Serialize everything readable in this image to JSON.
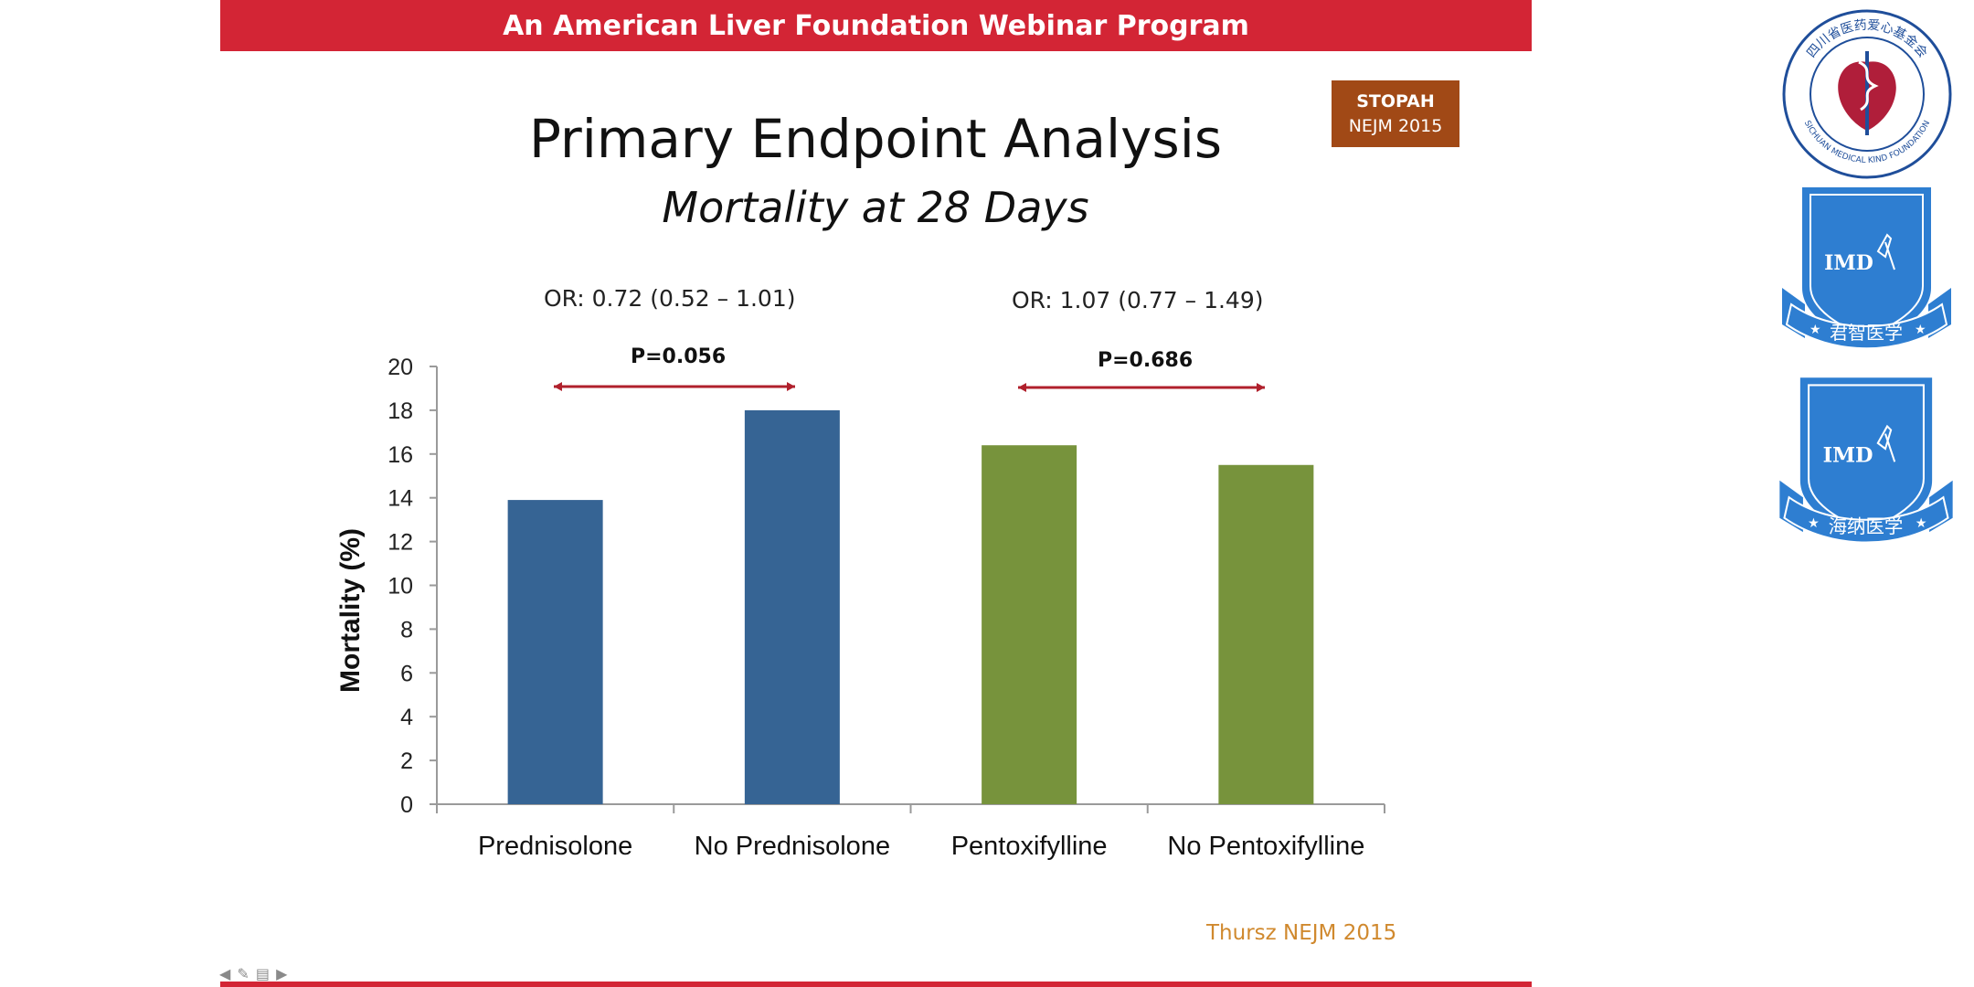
{
  "header": {
    "banner": "An American Liver Foundation Webinar Program"
  },
  "badge": {
    "line1": "STOPAH",
    "line2": "NEJM 2015"
  },
  "slide": {
    "title": "Primary Endpoint Analysis",
    "subtitle": "Mortality at 28 Days",
    "citation": "Thursz  NEJM 2015"
  },
  "comparisons": [
    {
      "or": "OR: 0.72 (0.52 – 1.01)",
      "p": "P=0.056"
    },
    {
      "or": "OR: 1.07 (0.77 – 1.49)",
      "p": "P=0.686"
    }
  ],
  "logos": [
    {
      "text": "四川省医药爱心基金会",
      "subtext": "SICHUAN MEDICAL KIND FOUNDATION"
    },
    {
      "text": "IMD",
      "subtext": "君智医学"
    },
    {
      "text": "IMD",
      "subtext": "海纳医学"
    }
  ],
  "colors": {
    "banner": "#d32535",
    "badge": "#a14916",
    "prednisolone": "#366494",
    "pentoxifylline": "#77933c",
    "bracket": "#b0202c",
    "citation": "#d0892e",
    "logo_blue": "#2e7ed1",
    "seal_red": "#b01e3a"
  },
  "nav_icons": [
    "back-arrow-icon",
    "pen-icon",
    "menu-icon",
    "forward-arrow-icon"
  ],
  "chart_data": {
    "type": "bar",
    "categories": [
      "Prednisolone",
      "No Prednisolone",
      "Pentoxifylline",
      "No Pentoxifylline"
    ],
    "values": [
      13.9,
      18.0,
      16.4,
      15.5
    ],
    "series_colors": [
      "#366494",
      "#366494",
      "#77933c",
      "#77933c"
    ],
    "ylabel": "Mortality (%)",
    "xlabel": "",
    "ylim": [
      0,
      20
    ],
    "yticks": [
      0,
      2,
      4,
      6,
      8,
      10,
      12,
      14,
      16,
      18,
      20
    ],
    "grid": false,
    "legend": "none"
  }
}
